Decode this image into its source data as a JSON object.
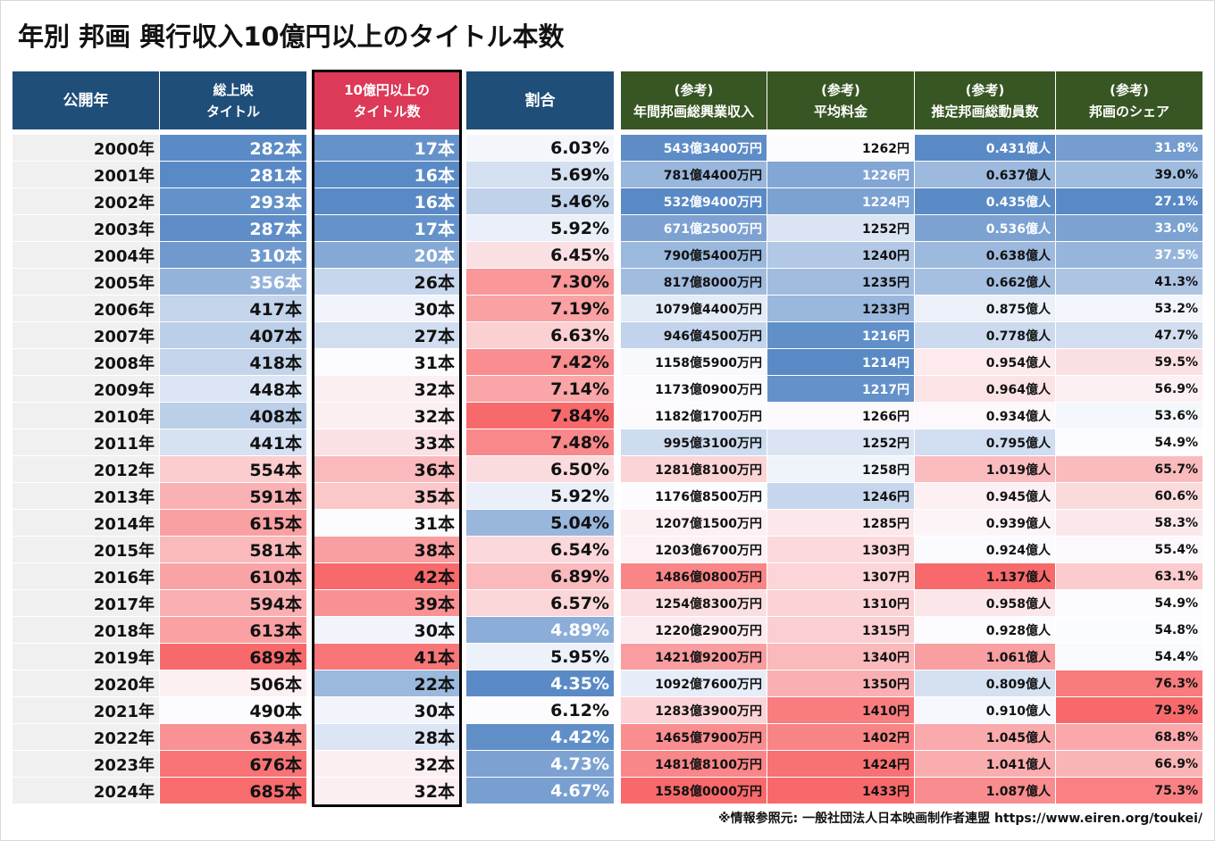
{
  "title": "年別 邦画 興行収入10億円以上のタイトル本数",
  "headers": [
    {
      "lines": [
        "公開年"
      ]
    },
    {
      "lines": [
        "総上映",
        "タイトル"
      ]
    },
    {
      "lines": [
        "10億円以上の",
        "タイトル数"
      ]
    },
    {
      "lines": [
        "割合"
      ]
    },
    {
      "lines": [
        "(参考)",
        "年間邦画総興業収入"
      ]
    },
    {
      "lines": [
        "(参考)",
        "平均料金"
      ]
    },
    {
      "lines": [
        "(参考)",
        "推定邦画総動員数"
      ]
    },
    {
      "lines": [
        "(参考)",
        "邦画のシェア"
      ]
    }
  ],
  "scale_colors": {
    "low": "#5a8ac6",
    "mid": "#fcfcff",
    "high": "#f8696b"
  },
  "header_colors": {
    "navy": "#1f4e79",
    "red": "#dc3a58",
    "green": "#375623"
  },
  "rows": [
    {
      "year": "2000年",
      "total": "282本",
      "over10": "17本",
      "ratio": "6.03%",
      "revenue": "543億3400万円",
      "price": "1262円",
      "attendance": "0.431億人",
      "share": "31.8%"
    },
    {
      "year": "2001年",
      "total": "281本",
      "over10": "16本",
      "ratio": "5.69%",
      "revenue": "781億4400万円",
      "price": "1226円",
      "attendance": "0.637億人",
      "share": "39.0%"
    },
    {
      "year": "2002年",
      "total": "293本",
      "over10": "16本",
      "ratio": "5.46%",
      "revenue": "532億9400万円",
      "price": "1224円",
      "attendance": "0.435億人",
      "share": "27.1%"
    },
    {
      "year": "2003年",
      "total": "287本",
      "over10": "17本",
      "ratio": "5.92%",
      "revenue": "671億2500万円",
      "price": "1252円",
      "attendance": "0.536億人",
      "share": "33.0%"
    },
    {
      "year": "2004年",
      "total": "310本",
      "over10": "20本",
      "ratio": "6.45%",
      "revenue": "790億5400万円",
      "price": "1240円",
      "attendance": "0.638億人",
      "share": "37.5%"
    },
    {
      "year": "2005年",
      "total": "356本",
      "over10": "26本",
      "ratio": "7.30%",
      "revenue": "817億8000万円",
      "price": "1235円",
      "attendance": "0.662億人",
      "share": "41.3%"
    },
    {
      "year": "2006年",
      "total": "417本",
      "over10": "30本",
      "ratio": "7.19%",
      "revenue": "1079億4400万円",
      "price": "1233円",
      "attendance": "0.875億人",
      "share": "53.2%"
    },
    {
      "year": "2007年",
      "total": "407本",
      "over10": "27本",
      "ratio": "6.63%",
      "revenue": "946億4500万円",
      "price": "1216円",
      "attendance": "0.778億人",
      "share": "47.7%"
    },
    {
      "year": "2008年",
      "total": "418本",
      "over10": "31本",
      "ratio": "7.42%",
      "revenue": "1158億5900万円",
      "price": "1214円",
      "attendance": "0.954億人",
      "share": "59.5%"
    },
    {
      "year": "2009年",
      "total": "448本",
      "over10": "32本",
      "ratio": "7.14%",
      "revenue": "1173億0900万円",
      "price": "1217円",
      "attendance": "0.964億人",
      "share": "56.9%"
    },
    {
      "year": "2010年",
      "total": "408本",
      "over10": "32本",
      "ratio": "7.84%",
      "revenue": "1182億1700万円",
      "price": "1266円",
      "attendance": "0.934億人",
      "share": "53.6%"
    },
    {
      "year": "2011年",
      "total": "441本",
      "over10": "33本",
      "ratio": "7.48%",
      "revenue": "995億3100万円",
      "price": "1252円",
      "attendance": "0.795億人",
      "share": "54.9%"
    },
    {
      "year": "2012年",
      "total": "554本",
      "over10": "36本",
      "ratio": "6.50%",
      "revenue": "1281億8100万円",
      "price": "1258円",
      "attendance": "1.019億人",
      "share": "65.7%"
    },
    {
      "year": "2013年",
      "total": "591本",
      "over10": "35本",
      "ratio": "5.92%",
      "revenue": "1176億8500万円",
      "price": "1246円",
      "attendance": "0.945億人",
      "share": "60.6%"
    },
    {
      "year": "2014年",
      "total": "615本",
      "over10": "31本",
      "ratio": "5.04%",
      "revenue": "1207億1500万円",
      "price": "1285円",
      "attendance": "0.939億人",
      "share": "58.3%"
    },
    {
      "year": "2015年",
      "total": "581本",
      "over10": "38本",
      "ratio": "6.54%",
      "revenue": "1203億6700万円",
      "price": "1303円",
      "attendance": "0.924億人",
      "share": "55.4%"
    },
    {
      "year": "2016年",
      "total": "610本",
      "over10": "42本",
      "ratio": "6.89%",
      "revenue": "1486億0800万円",
      "price": "1307円",
      "attendance": "1.137億人",
      "share": "63.1%"
    },
    {
      "year": "2017年",
      "total": "594本",
      "over10": "39本",
      "ratio": "6.57%",
      "revenue": "1254億8300万円",
      "price": "1310円",
      "attendance": "0.958億人",
      "share": "54.9%"
    },
    {
      "year": "2018年",
      "total": "613本",
      "over10": "30本",
      "ratio": "4.89%",
      "revenue": "1220億2900万円",
      "price": "1315円",
      "attendance": "0.928億人",
      "share": "54.8%"
    },
    {
      "year": "2019年",
      "total": "689本",
      "over10": "41本",
      "ratio": "5.95%",
      "revenue": "1421億9200万円",
      "price": "1340円",
      "attendance": "1.061億人",
      "share": "54.4%"
    },
    {
      "year": "2020年",
      "total": "506本",
      "over10": "22本",
      "ratio": "4.35%",
      "revenue": "1092億7600万円",
      "price": "1350円",
      "attendance": "0.809億人",
      "share": "76.3%"
    },
    {
      "year": "2021年",
      "total": "490本",
      "over10": "30本",
      "ratio": "6.12%",
      "revenue": "1283億3900万円",
      "price": "1410円",
      "attendance": "0.910億人",
      "share": "79.3%"
    },
    {
      "year": "2022年",
      "total": "634本",
      "over10": "28本",
      "ratio": "4.42%",
      "revenue": "1465億7900万円",
      "price": "1402円",
      "attendance": "1.045億人",
      "share": "68.8%"
    },
    {
      "year": "2023年",
      "total": "676本",
      "over10": "32本",
      "ratio": "4.73%",
      "revenue": "1481億8100万円",
      "price": "1424円",
      "attendance": "1.041億人",
      "share": "66.9%"
    },
    {
      "year": "2024年",
      "total": "685本",
      "over10": "32本",
      "ratio": "4.67%",
      "revenue": "1558億0000万円",
      "price": "1433円",
      "attendance": "1.087億人",
      "share": "75.3%"
    }
  ],
  "source": "※情報参照元: 一般社団法人日本映画制作者連盟  https://www.eiren.org/toukei/"
}
